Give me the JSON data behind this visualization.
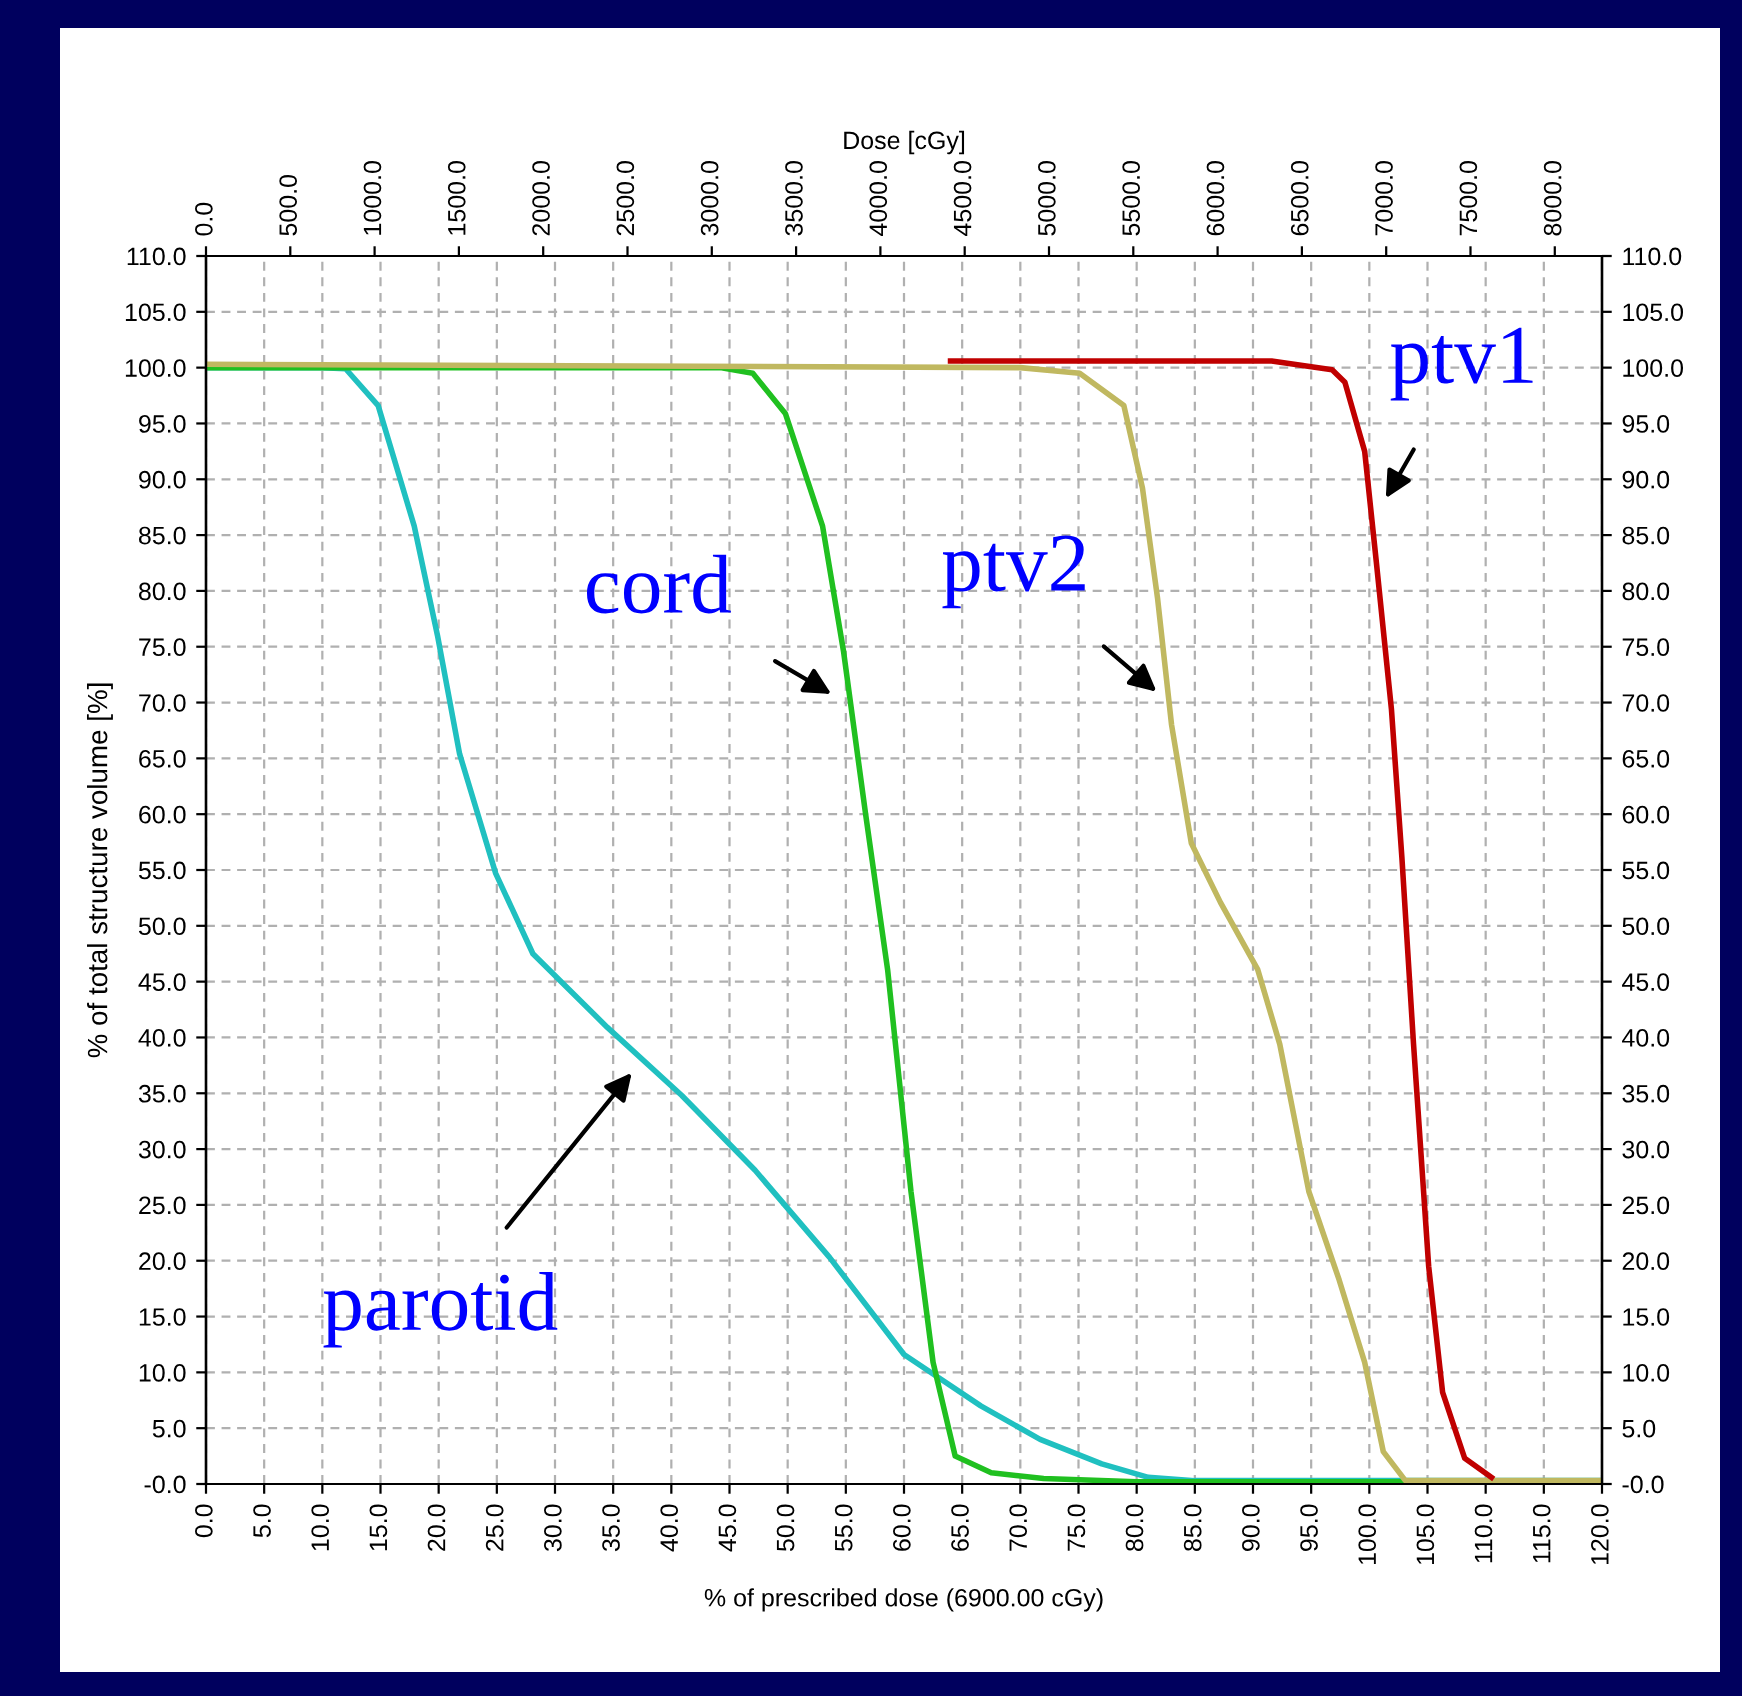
{
  "chart_data": {
    "type": "line",
    "xlabel": "% of prescribed dose (6900.00 cGy)",
    "ylabel": "% of total structure volume [%]",
    "x2label": "Dose [cGy]",
    "xlim": [
      0,
      120
    ],
    "xticks": [
      {
        "value": 0,
        "label": "0.0"
      },
      {
        "value": 5,
        "label": "5.0"
      },
      {
        "value": 10,
        "label": "10.0"
      },
      {
        "value": 15,
        "label": "15.0"
      },
      {
        "value": 20,
        "label": "20.0"
      },
      {
        "value": 25,
        "label": "25.0"
      },
      {
        "value": 30,
        "label": "30.0"
      },
      {
        "value": 35,
        "label": "35.0"
      },
      {
        "value": 40,
        "label": "40.0"
      },
      {
        "value": 45,
        "label": "45.0"
      },
      {
        "value": 50,
        "label": "50.0"
      },
      {
        "value": 55,
        "label": "55.0"
      },
      {
        "value": 60,
        "label": "60.0"
      },
      {
        "value": 65,
        "label": "65.0"
      },
      {
        "value": 70,
        "label": "70.0"
      },
      {
        "value": 75,
        "label": "75.0"
      },
      {
        "value": 80,
        "label": "80.0"
      },
      {
        "value": 85,
        "label": "85.0"
      },
      {
        "value": 90,
        "label": "90.0"
      },
      {
        "value": 95,
        "label": "95.0"
      },
      {
        "value": 100,
        "label": "100.0"
      },
      {
        "value": 105,
        "label": "105.0"
      },
      {
        "value": 110,
        "label": "110.0"
      },
      {
        "value": 115,
        "label": "115.0"
      },
      {
        "value": 120,
        "label": "120.0"
      }
    ],
    "x2lim": [
      0,
      8280
    ],
    "x2ticks": [
      {
        "value": 0,
        "label": "0.0"
      },
      {
        "value": 500,
        "label": "500.0"
      },
      {
        "value": 1000,
        "label": "1000.0"
      },
      {
        "value": 1500,
        "label": "1500.0"
      },
      {
        "value": 2000,
        "label": "2000.0"
      },
      {
        "value": 2500,
        "label": "2500.0"
      },
      {
        "value": 3000,
        "label": "3000.0"
      },
      {
        "value": 3500,
        "label": "3500.0"
      },
      {
        "value": 4000,
        "label": "4000.0"
      },
      {
        "value": 4500,
        "label": "4500.0"
      },
      {
        "value": 5000,
        "label": "5000.0"
      },
      {
        "value": 5500,
        "label": "5500.0"
      },
      {
        "value": 6000,
        "label": "6000.0"
      },
      {
        "value": 6500,
        "label": "6500.0"
      },
      {
        "value": 7000,
        "label": "7000.0"
      },
      {
        "value": 7500,
        "label": "7500.0"
      },
      {
        "value": 8000,
        "label": "8000.0"
      }
    ],
    "ylim": [
      0,
      110
    ],
    "yticks": [
      {
        "value": 0,
        "label": "-0.0"
      },
      {
        "value": 5,
        "label": "5.0"
      },
      {
        "value": 10,
        "label": "10.0"
      },
      {
        "value": 15,
        "label": "15.0"
      },
      {
        "value": 20,
        "label": "20.0"
      },
      {
        "value": 25,
        "label": "25.0"
      },
      {
        "value": 30,
        "label": "30.0"
      },
      {
        "value": 35,
        "label": "35.0"
      },
      {
        "value": 40,
        "label": "40.0"
      },
      {
        "value": 45,
        "label": "45.0"
      },
      {
        "value": 50,
        "label": "50.0"
      },
      {
        "value": 55,
        "label": "55.0"
      },
      {
        "value": 60,
        "label": "60.0"
      },
      {
        "value": 65,
        "label": "65.0"
      },
      {
        "value": 70,
        "label": "70.0"
      },
      {
        "value": 75,
        "label": "75.0"
      },
      {
        "value": 80,
        "label": "80.0"
      },
      {
        "value": 85,
        "label": "85.0"
      },
      {
        "value": 90,
        "label": "90.0"
      },
      {
        "value": 95,
        "label": "95.0"
      },
      {
        "value": 100,
        "label": "100.0"
      },
      {
        "value": 105,
        "label": "105.0"
      },
      {
        "value": 110,
        "label": "110.0"
      }
    ],
    "y2lim": [
      0,
      110
    ],
    "y2ticks": [
      {
        "value": 0,
        "label": "-0.0"
      },
      {
        "value": 5,
        "label": "5.0"
      },
      {
        "value": 10,
        "label": "10.0"
      },
      {
        "value": 15,
        "label": "15.0"
      },
      {
        "value": 20,
        "label": "20.0"
      },
      {
        "value": 25,
        "label": "25.0"
      },
      {
        "value": 30,
        "label": "30.0"
      },
      {
        "value": 35,
        "label": "35.0"
      },
      {
        "value": 40,
        "label": "40.0"
      },
      {
        "value": 45,
        "label": "45.0"
      },
      {
        "value": 50,
        "label": "50.0"
      },
      {
        "value": 55,
        "label": "55.0"
      },
      {
        "value": 60,
        "label": "60.0"
      },
      {
        "value": 65,
        "label": "65.0"
      },
      {
        "value": 70,
        "label": "70.0"
      },
      {
        "value": 75,
        "label": "75.0"
      },
      {
        "value": 80,
        "label": "80.0"
      },
      {
        "value": 85,
        "label": "85.0"
      },
      {
        "value": 90,
        "label": "90.0"
      },
      {
        "value": 95,
        "label": "95.0"
      },
      {
        "value": 100,
        "label": "100.0"
      },
      {
        "value": 105,
        "label": "105.0"
      },
      {
        "value": 110,
        "label": "110.0"
      }
    ],
    "grid": true,
    "marker": "none",
    "line_style": "solid",
    "series": [
      {
        "color": "#20c0c0",
        "x": [
          0,
          10,
          12,
          14.8,
          17.9,
          19.9,
          21.8,
          24.9,
          28.1,
          34.5,
          40.9,
          47.2,
          53.6,
          60,
          66.6,
          71.7,
          77,
          81,
          85,
          120
        ],
        "values": [
          100,
          100,
          99.9,
          96.6,
          85.8,
          76,
          65.4,
          54.7,
          47.5,
          40.9,
          34.8,
          28.1,
          20.3,
          11.6,
          7,
          4,
          1.8,
          0.6,
          0.3,
          0.3
        ]
      },
      {
        "color": "#20c020",
        "x": [
          0,
          44.2,
          47,
          49.8,
          53,
          54.8,
          56.7,
          58.6,
          60.6,
          62.5,
          64.4,
          67.5,
          72,
          80,
          120
        ],
        "values": [
          100,
          100,
          99.5,
          95.9,
          85.8,
          74.6,
          60,
          46,
          26.2,
          10.9,
          2.5,
          1,
          0.5,
          0.2,
          0.2
        ]
      },
      {
        "color": "#c0b860",
        "x": [
          0,
          70,
          75.1,
          78.9,
          80.5,
          81.8,
          83,
          84.7,
          87.2,
          90.4,
          92.3,
          94.8,
          97.4,
          99.6,
          101.2,
          103.1,
          120
        ],
        "values": [
          100.3,
          100,
          99.5,
          96.6,
          89.2,
          79.3,
          68,
          57.4,
          52.1,
          46.1,
          39.4,
          26.2,
          18.3,
          10.9,
          2.9,
          0.3,
          0.3
        ]
      },
      {
        "color": "#c00000",
        "x": [
          64,
          91.6,
          96.8,
          97.9,
          99.6,
          100.6,
          101.9,
          102.8,
          103.8,
          105.1,
          106.3,
          108.2,
          110.5
        ],
        "values": [
          100.6,
          100.6,
          99.8,
          98.7,
          92.5,
          82.6,
          69.4,
          56.1,
          39.4,
          19.5,
          8.2,
          2.3,
          0.6
        ]
      }
    ],
    "annotations": [
      {
        "text": "cord",
        "x": 55,
        "y": 70
      },
      {
        "text": "ptv2",
        "x": 82.8,
        "y": 70
      },
      {
        "text": "ptv1",
        "x": 100.7,
        "y": 87
      },
      {
        "text": "parotid",
        "x": 37.5,
        "y": 38
      }
    ]
  }
}
